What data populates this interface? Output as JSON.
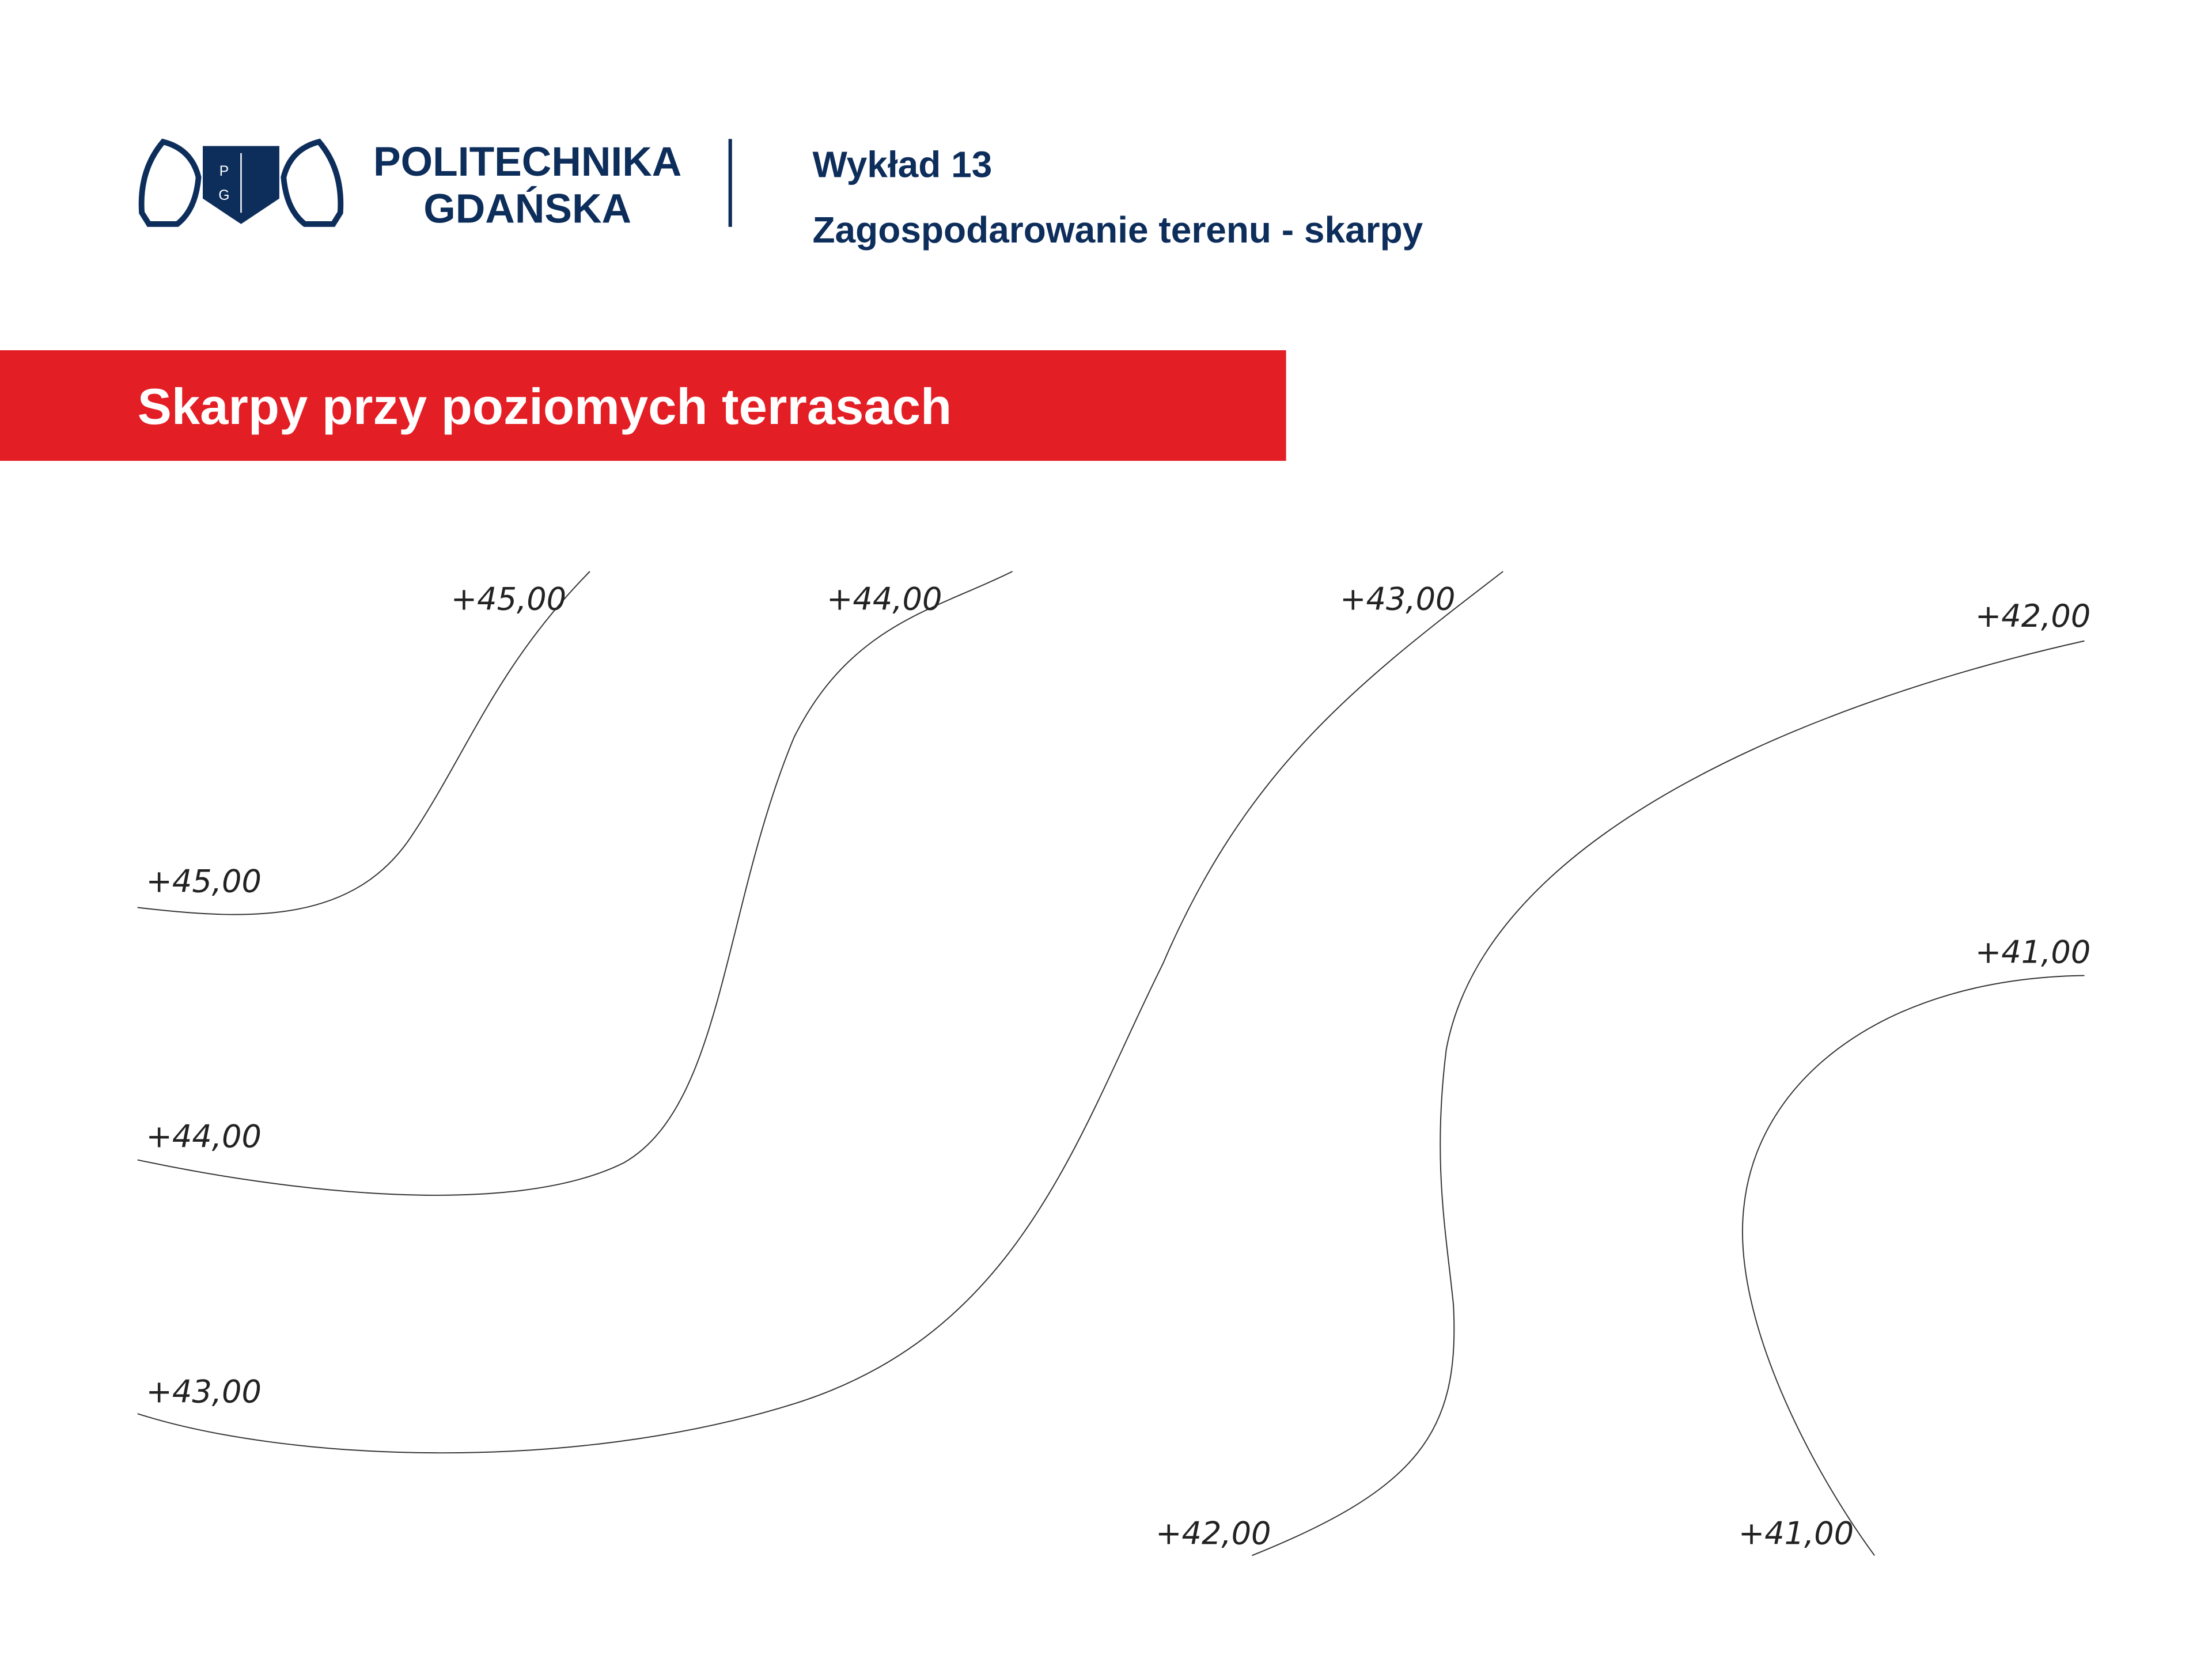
{
  "header": {
    "logo_mark": [
      "P",
      "G"
    ],
    "logo_text": [
      "POLITECHNIKA",
      "GDAŃSKA"
    ],
    "lecture": "Wykład 13",
    "topic": "Zagospodarowanie terenu - skarpy"
  },
  "section_title": "Skarpy przy poziomych terrasach",
  "contours": [
    {
      "start_label": "+45,00",
      "end_label": "+45,00"
    },
    {
      "start_label": "+44,00",
      "end_label": "+44,00"
    },
    {
      "start_label": "+43,00",
      "end_label": "+43,00"
    },
    {
      "start_label": "+42,00",
      "end_label": "+42,00"
    },
    {
      "start_label": "+41,00",
      "end_label": "+41,00"
    }
  ]
}
